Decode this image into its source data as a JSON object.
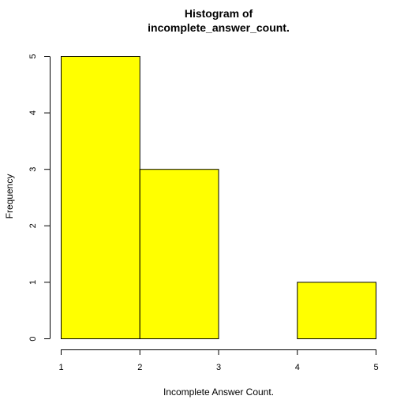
{
  "chart_data": {
    "type": "bar",
    "title_lines": [
      "Histogram of",
      "incomplete_answer_count."
    ],
    "xlabel": "Incomplete Answer Count.",
    "ylabel": "Frequency",
    "bins": [
      {
        "x0": 1,
        "x1": 2,
        "count": 5
      },
      {
        "x0": 2,
        "x1": 3,
        "count": 3
      },
      {
        "x0": 3,
        "x1": 4,
        "count": 0
      },
      {
        "x0": 4,
        "x1": 5,
        "count": 1
      }
    ],
    "xticks": [
      1,
      2,
      3,
      4,
      5
    ],
    "yticks": [
      0,
      1,
      2,
      3,
      4,
      5
    ],
    "xlim": [
      1,
      5
    ],
    "ylim": [
      0,
      5
    ],
    "bar_color": "#ffff00",
    "bar_border_color": "#000000",
    "grid": false,
    "legend": "none"
  }
}
